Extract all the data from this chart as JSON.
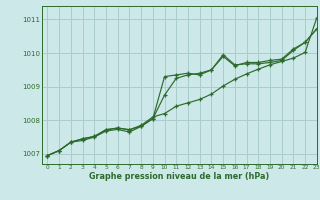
{
  "xlabel": "Graphe pression niveau de la mer (hPa)",
  "bg_color": "#cce8e8",
  "grid_color": "#aacccc",
  "line_color": "#2d6b2d",
  "xlim": [
    -0.5,
    23
  ],
  "ylim": [
    1006.7,
    1011.4
  ],
  "yticks": [
    1007,
    1008,
    1009,
    1010,
    1011
  ],
  "xticks": [
    0,
    1,
    2,
    3,
    4,
    5,
    6,
    7,
    8,
    9,
    10,
    11,
    12,
    13,
    14,
    15,
    16,
    17,
    18,
    19,
    20,
    21,
    22,
    23
  ],
  "line1_x": [
    0,
    1,
    2,
    3,
    4,
    5,
    6,
    7,
    8,
    9,
    10,
    11,
    12,
    13,
    14,
    15,
    16,
    17,
    18,
    19,
    20,
    21,
    22,
    23
  ],
  "line1_y": [
    1006.95,
    1007.1,
    1007.35,
    1007.4,
    1007.5,
    1007.68,
    1007.73,
    1007.65,
    1007.82,
    1008.05,
    1009.3,
    1009.35,
    1009.4,
    1009.35,
    1009.5,
    1009.95,
    1009.65,
    1009.68,
    1009.68,
    1009.72,
    1009.78,
    1010.08,
    1010.32,
    1010.72
  ],
  "line2_x": [
    0,
    1,
    2,
    3,
    4,
    5,
    6,
    7,
    8,
    9,
    10,
    11,
    12,
    13,
    14,
    15,
    16,
    17,
    18,
    19,
    20,
    21,
    22,
    23
  ],
  "line2_y": [
    1006.95,
    1007.1,
    1007.35,
    1007.45,
    1007.52,
    1007.72,
    1007.77,
    1007.72,
    1007.82,
    1008.05,
    1008.75,
    1009.25,
    1009.35,
    1009.4,
    1009.5,
    1009.9,
    1009.62,
    1009.72,
    1009.72,
    1009.78,
    1009.82,
    1010.12,
    1010.32,
    1010.72
  ],
  "line3_x": [
    0,
    1,
    2,
    3,
    4,
    5,
    6,
    7,
    8,
    9,
    10,
    11,
    12,
    13,
    14,
    15,
    16,
    17,
    18,
    19,
    20,
    21,
    22,
    23
  ],
  "line3_y": [
    1006.95,
    1007.1,
    1007.35,
    1007.45,
    1007.52,
    1007.72,
    1007.77,
    1007.72,
    1007.85,
    1008.1,
    1008.2,
    1008.42,
    1008.52,
    1008.62,
    1008.78,
    1009.02,
    1009.22,
    1009.38,
    1009.52,
    1009.65,
    1009.75,
    1009.85,
    1010.02,
    1011.05
  ]
}
